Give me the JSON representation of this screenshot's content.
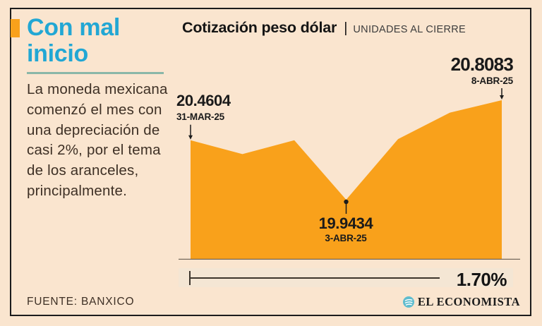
{
  "page": {
    "background_color": "#FAE5CF",
    "frame_color": "#1C1C1C"
  },
  "left_panel": {
    "accent_color": "#F9A11B",
    "title": "Con mal\ninicio",
    "title_color": "#22A7D4",
    "body": "La moneda mexicana\ncomenzó el mes con\nuna depreciación de\ncasi 2%, por el tema\nde los aranceles,\nprincipalmente.",
    "source": "FUENTE: BANXICO"
  },
  "chart_header": {
    "title": "Cotización peso dólar",
    "separator": "|",
    "subtitle": "UNIDADES AL CIERRE"
  },
  "chart_data": {
    "type": "area",
    "title": "Cotización peso dólar",
    "subtitle": "UNIDADES AL CIERRE",
    "x": [
      "31-MAR-25",
      "",
      "",
      "3-ABR-25",
      "",
      "",
      "8-ABR-25"
    ],
    "values": [
      20.4604,
      20.34,
      20.46,
      19.9434,
      20.47,
      20.7,
      20.8083
    ],
    "ylim": [
      19.9434,
      20.8083
    ],
    "grid": false,
    "legend": false,
    "fill_color": "#F9A11B",
    "baseline_color": "#75695C",
    "marker_color": "#1C1C1C",
    "annotations": [
      {
        "value": "20.4604",
        "date": "31-MAR-25",
        "point": "first"
      },
      {
        "value": "19.9434",
        "date": "3-ABR-25",
        "point": "min"
      },
      {
        "value": "20.8083",
        "date": "8-ABR-25",
        "point": "last"
      }
    ],
    "change_label": "1.70%"
  },
  "footer": {
    "brand": "EL ECONOMISTA",
    "brand_icon_color": "#5FBCCE"
  }
}
